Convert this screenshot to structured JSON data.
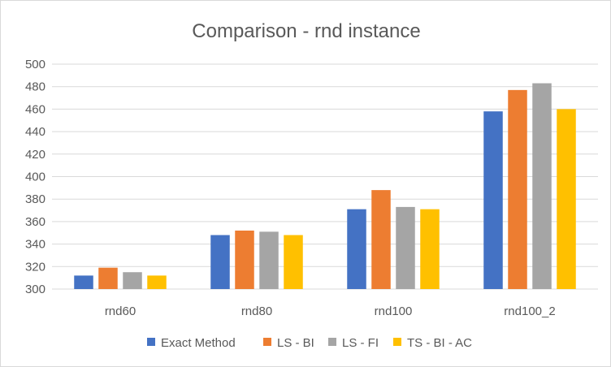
{
  "chart_data": {
    "type": "bar",
    "title": "Comparison - rnd instance",
    "xlabel": "",
    "ylabel": "",
    "ylim": [
      300,
      500
    ],
    "yticks": [
      300,
      320,
      340,
      360,
      380,
      400,
      420,
      440,
      460,
      480,
      500
    ],
    "grid": true,
    "legend_position": "bottom",
    "categories": [
      "rnd60",
      "rnd80",
      "rnd100",
      "rnd100_2"
    ],
    "series": [
      {
        "name": "Exact Method",
        "color": "#4472C4",
        "values": [
          312,
          348,
          371,
          458
        ]
      },
      {
        "name": "LS - BI",
        "color": "#ED7D31",
        "values": [
          319,
          352,
          388,
          477
        ]
      },
      {
        "name": "LS - FI",
        "color": "#A5A5A5",
        "values": [
          315,
          351,
          373,
          483
        ]
      },
      {
        "name": "TS - BI - AC",
        "color": "#FFC000",
        "values": [
          312,
          348,
          371,
          460
        ]
      }
    ]
  }
}
